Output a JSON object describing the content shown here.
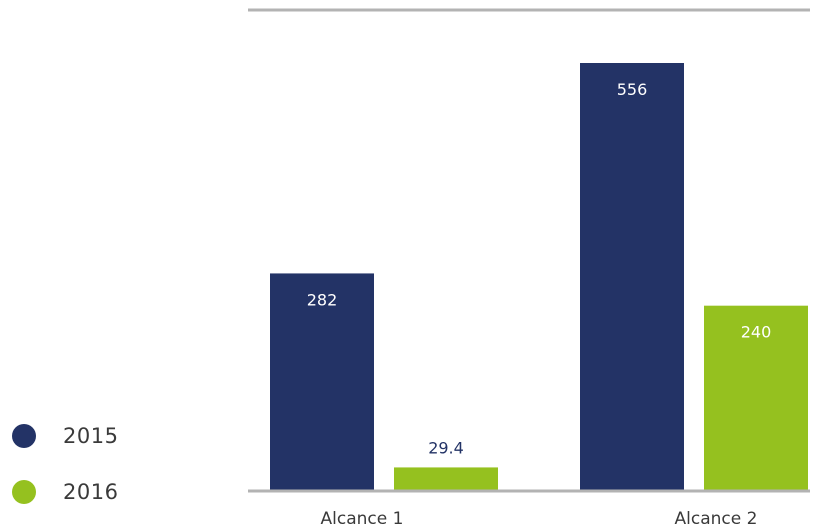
{
  "chart_data": {
    "type": "bar",
    "categories": [
      "Alcance 1",
      "Alcance 2"
    ],
    "series": [
      {
        "name": "2015",
        "values": [
          282,
          556
        ],
        "color": "#233366",
        "label_color": "#ffffff"
      },
      {
        "name": "2016",
        "values": [
          29.4,
          240
        ],
        "color": "#95c11f",
        "label_color": "#ffffff"
      }
    ],
    "data_labels": [
      [
        "282",
        "556"
      ],
      [
        "29.4",
        "240"
      ]
    ],
    "ylim": [
      0,
      600
    ],
    "legend_position": "left",
    "grid": false
  }
}
